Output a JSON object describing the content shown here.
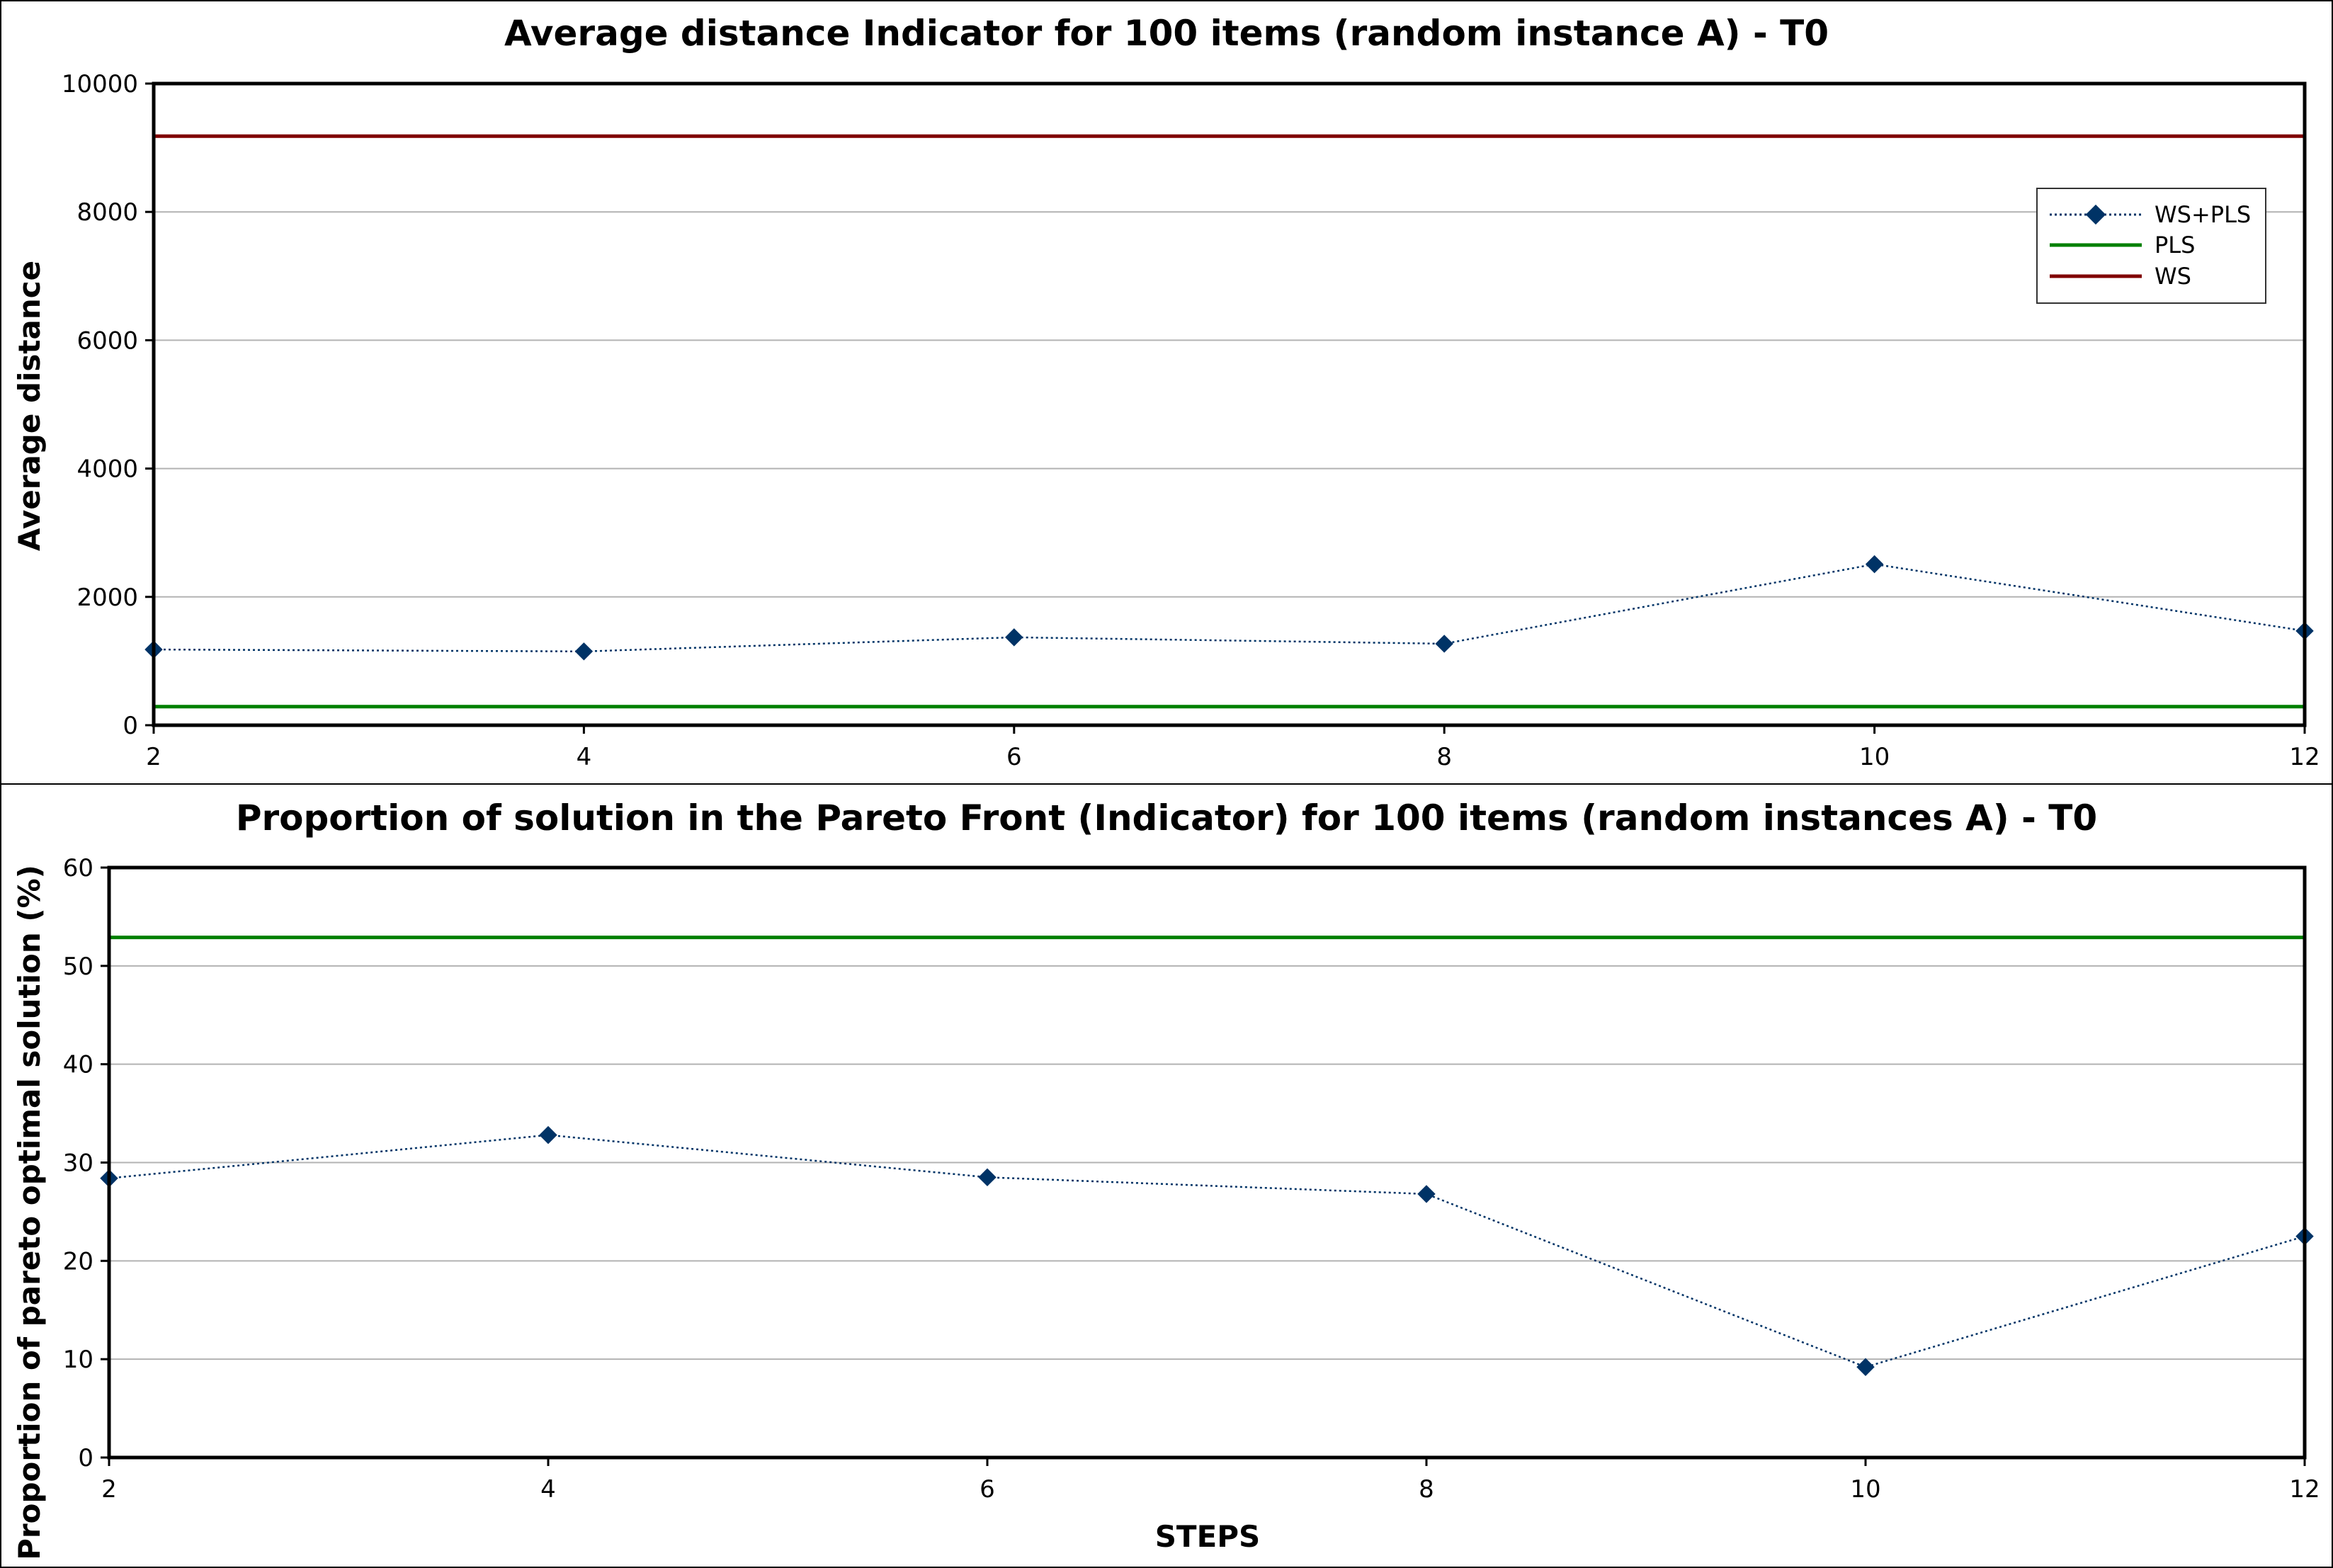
{
  "chart_data": [
    {
      "type": "line",
      "title": "Average distance Indicator for 100 items (random instance A) - T0",
      "xlabel": "",
      "ylabel": "Average distance",
      "x": [
        2,
        4,
        6,
        8,
        10,
        12
      ],
      "x_ticks": [
        "2",
        "4",
        "6",
        "8",
        "10",
        "12"
      ],
      "xlim": [
        2,
        12
      ],
      "ylim": [
        0,
        10000
      ],
      "y_ticks": [
        "0",
        "2000",
        "4000",
        "6000",
        "8000",
        "10000"
      ],
      "y_tick_values": [
        0,
        2000,
        4000,
        6000,
        8000,
        10000
      ],
      "grid": true,
      "legend_position": "top-right",
      "series": [
        {
          "name": "WS+PLS",
          "values": [
            1180,
            1150,
            1370,
            1270,
            2510,
            1470
          ],
          "color": "#003366",
          "style": "dotted-diamond"
        },
        {
          "name": "PLS",
          "values": [
            290,
            290,
            290,
            290,
            290,
            290
          ],
          "color": "#008000",
          "style": "solid"
        },
        {
          "name": "WS",
          "values": [
            9180,
            9180,
            9180,
            9180,
            9180,
            9180
          ],
          "color": "#800000",
          "style": "solid"
        }
      ]
    },
    {
      "type": "line",
      "title": "Proportion of solution in the Pareto Front  (Indicator) for 100 items (random instances A) - T0",
      "xlabel": "STEPS",
      "ylabel": "Proportion of pareto optimal solution  (%)",
      "x": [
        2,
        4,
        6,
        8,
        10,
        12
      ],
      "x_ticks": [
        "2",
        "4",
        "6",
        "8",
        "10",
        "12"
      ],
      "xlim": [
        2,
        12
      ],
      "ylim": [
        0,
        60
      ],
      "y_ticks": [
        "0",
        "10",
        "20",
        "30",
        "40",
        "50",
        "60"
      ],
      "y_tick_values": [
        0,
        10,
        20,
        30,
        40,
        50,
        60
      ],
      "grid": true,
      "legend_position": "none",
      "series": [
        {
          "values": [
            28.4,
            32.8,
            28.5,
            26.8,
            9.2,
            22.5
          ],
          "color": "#003366",
          "style": "dotted-diamond"
        },
        {
          "values": [
            52.9,
            52.9,
            52.9,
            52.9,
            52.9,
            52.9
          ],
          "color": "#008000",
          "style": "solid"
        },
        {
          "values": [
            0,
            0,
            0,
            0,
            0,
            0
          ],
          "color": "#800000",
          "style": "solid"
        }
      ]
    }
  ]
}
